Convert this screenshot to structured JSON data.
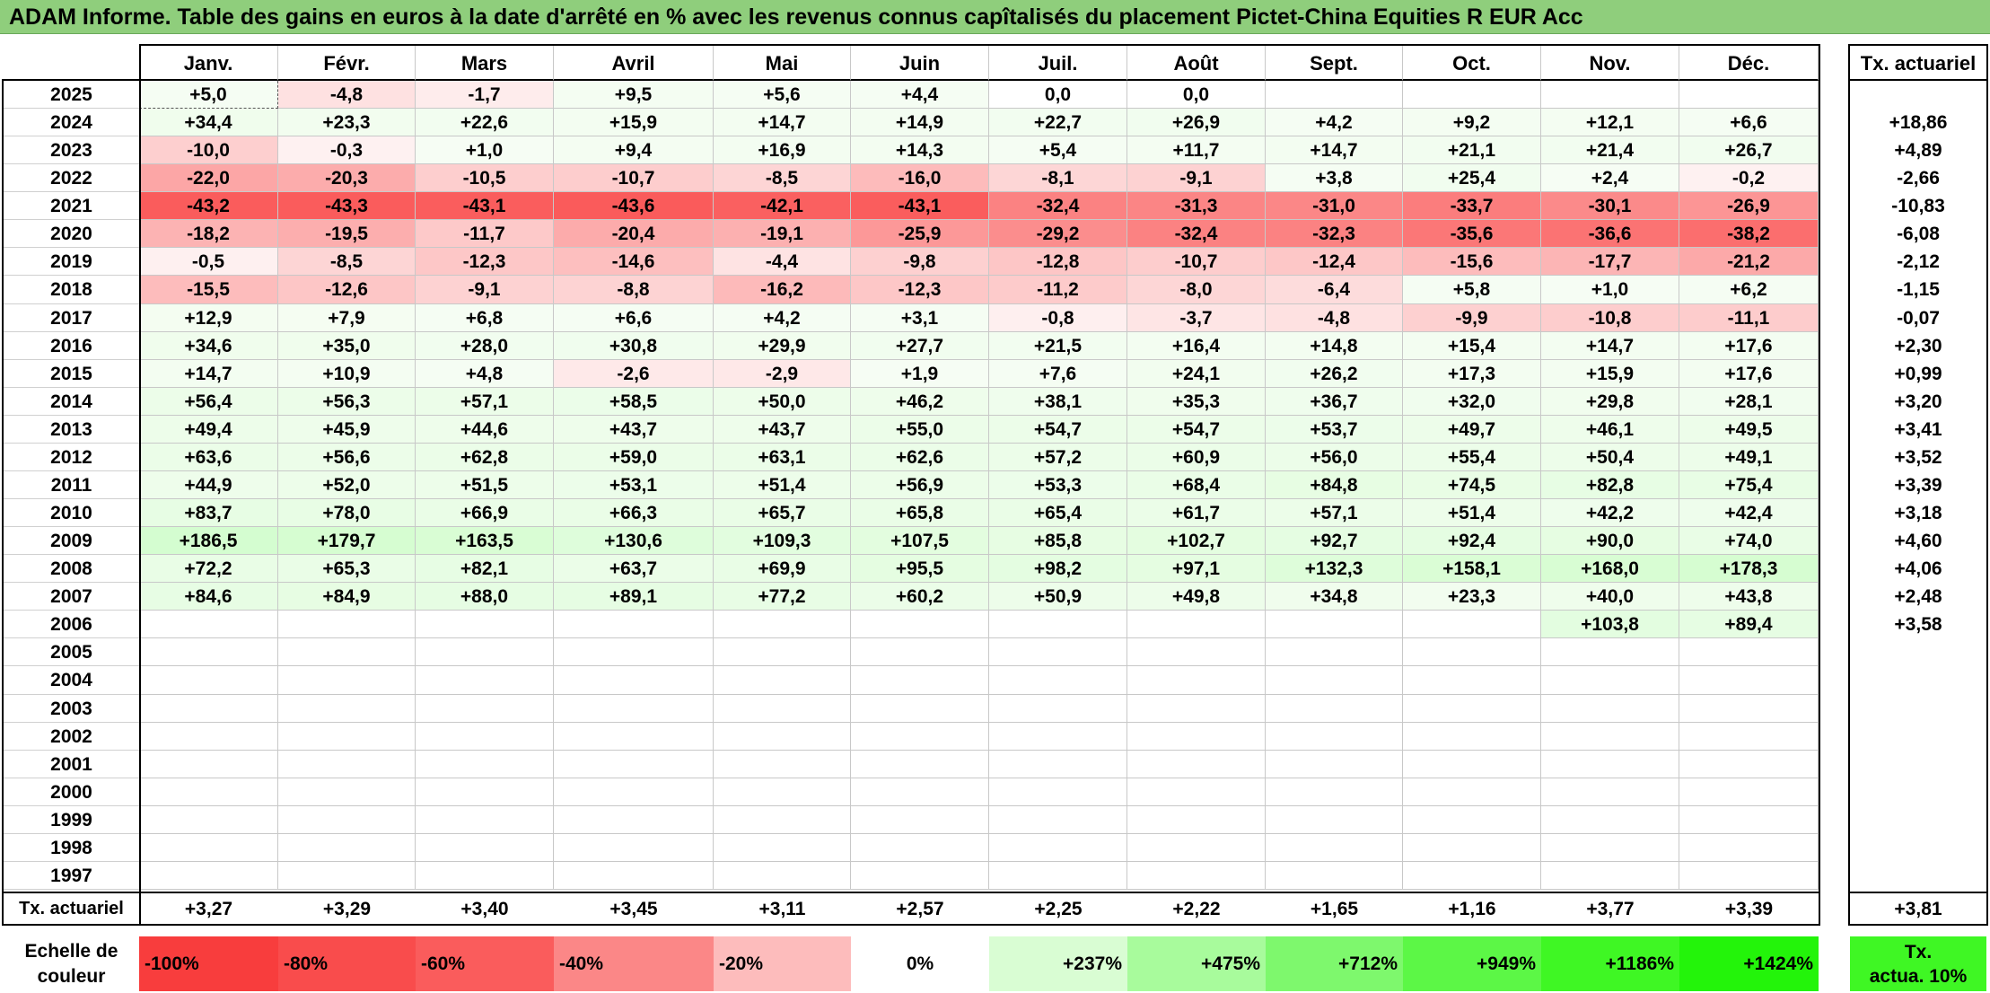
{
  "title": "ADAM Informe. Table des gains en euros à la date d'arrêté en % avec les revenus connus capîtalisés du placement Pictet-China Equities R EUR Acc",
  "months": [
    "Janv.",
    "Févr.",
    "Mars",
    "Avril",
    "Mai",
    "Juin",
    "Juil.",
    "Août",
    "Sept.",
    "Oct.",
    "Nov.",
    "Déc."
  ],
  "tx_header": "Tx. actuariel",
  "rows": [
    {
      "year": "2025",
      "values": [
        "+5,0",
        "-4,8",
        "-1,7",
        "+9,5",
        "+5,6",
        "+4,4",
        "0,0",
        "0,0",
        "",
        "",
        "",
        ""
      ],
      "tx": ""
    },
    {
      "year": "2024",
      "values": [
        "+34,4",
        "+23,3",
        "+22,6",
        "+15,9",
        "+14,7",
        "+14,9",
        "+22,7",
        "+26,9",
        "+4,2",
        "+9,2",
        "+12,1",
        "+6,6"
      ],
      "tx": "+18,86"
    },
    {
      "year": "2023",
      "values": [
        "-10,0",
        "-0,3",
        "+1,0",
        "+9,4",
        "+16,9",
        "+14,3",
        "+5,4",
        "+11,7",
        "+14,7",
        "+21,1",
        "+21,4",
        "+26,7"
      ],
      "tx": "+4,89"
    },
    {
      "year": "2022",
      "values": [
        "-22,0",
        "-20,3",
        "-10,5",
        "-10,7",
        "-8,5",
        "-16,0",
        "-8,1",
        "-9,1",
        "+3,8",
        "+25,4",
        "+2,4",
        "-0,2"
      ],
      "tx": "-2,66"
    },
    {
      "year": "2021",
      "values": [
        "-43,2",
        "-43,3",
        "-43,1",
        "-43,6",
        "-42,1",
        "-43,1",
        "-32,4",
        "-31,3",
        "-31,0",
        "-33,7",
        "-30,1",
        "-26,9"
      ],
      "tx": "-10,83"
    },
    {
      "year": "2020",
      "values": [
        "-18,2",
        "-19,5",
        "-11,7",
        "-20,4",
        "-19,1",
        "-25,9",
        "-29,2",
        "-32,4",
        "-32,3",
        "-35,6",
        "-36,6",
        "-38,2"
      ],
      "tx": "-6,08"
    },
    {
      "year": "2019",
      "values": [
        "-0,5",
        "-8,5",
        "-12,3",
        "-14,6",
        "-4,4",
        "-9,8",
        "-12,8",
        "-10,7",
        "-12,4",
        "-15,6",
        "-17,7",
        "-21,2"
      ],
      "tx": "-2,12"
    },
    {
      "year": "2018",
      "values": [
        "-15,5",
        "-12,6",
        "-9,1",
        "-8,8",
        "-16,2",
        "-12,3",
        "-11,2",
        "-8,0",
        "-6,4",
        "+5,8",
        "+1,0",
        "+6,2"
      ],
      "tx": "-1,15"
    },
    {
      "year": "2017",
      "values": [
        "+12,9",
        "+7,9",
        "+6,8",
        "+6,6",
        "+4,2",
        "+3,1",
        "-0,8",
        "-3,7",
        "-4,8",
        "-9,9",
        "-10,8",
        "-11,1"
      ],
      "tx": "-0,07"
    },
    {
      "year": "2016",
      "values": [
        "+34,6",
        "+35,0",
        "+28,0",
        "+30,8",
        "+29,9",
        "+27,7",
        "+21,5",
        "+16,4",
        "+14,8",
        "+15,4",
        "+14,7",
        "+17,6"
      ],
      "tx": "+2,30"
    },
    {
      "year": "2015",
      "values": [
        "+14,7",
        "+10,9",
        "+4,8",
        "-2,6",
        "-2,9",
        "+1,9",
        "+7,6",
        "+24,1",
        "+26,2",
        "+17,3",
        "+15,9",
        "+17,6"
      ],
      "tx": "+0,99"
    },
    {
      "year": "2014",
      "values": [
        "+56,4",
        "+56,3",
        "+57,1",
        "+58,5",
        "+50,0",
        "+46,2",
        "+38,1",
        "+35,3",
        "+36,7",
        "+32,0",
        "+29,8",
        "+28,1"
      ],
      "tx": "+3,20"
    },
    {
      "year": "2013",
      "values": [
        "+49,4",
        "+45,9",
        "+44,6",
        "+43,7",
        "+43,7",
        "+55,0",
        "+54,7",
        "+54,7",
        "+53,7",
        "+49,7",
        "+46,1",
        "+49,5"
      ],
      "tx": "+3,41"
    },
    {
      "year": "2012",
      "values": [
        "+63,6",
        "+56,6",
        "+62,8",
        "+59,0",
        "+63,1",
        "+62,6",
        "+57,2",
        "+60,9",
        "+56,0",
        "+55,4",
        "+50,4",
        "+49,1"
      ],
      "tx": "+3,52"
    },
    {
      "year": "2011",
      "values": [
        "+44,9",
        "+52,0",
        "+51,5",
        "+53,1",
        "+51,4",
        "+56,9",
        "+53,3",
        "+68,4",
        "+84,8",
        "+74,5",
        "+82,8",
        "+75,4"
      ],
      "tx": "+3,39"
    },
    {
      "year": "2010",
      "values": [
        "+83,7",
        "+78,0",
        "+66,9",
        "+66,3",
        "+65,7",
        "+65,8",
        "+65,4",
        "+61,7",
        "+57,1",
        "+51,4",
        "+42,2",
        "+42,4"
      ],
      "tx": "+3,18"
    },
    {
      "year": "2009",
      "values": [
        "+186,5",
        "+179,7",
        "+163,5",
        "+130,6",
        "+109,3",
        "+107,5",
        "+85,8",
        "+102,7",
        "+92,7",
        "+92,4",
        "+90,0",
        "+74,0"
      ],
      "tx": "+4,60"
    },
    {
      "year": "2008",
      "values": [
        "+72,2",
        "+65,3",
        "+82,1",
        "+63,7",
        "+69,9",
        "+95,5",
        "+98,2",
        "+97,1",
        "+132,3",
        "+158,1",
        "+168,0",
        "+178,3"
      ],
      "tx": "+4,06"
    },
    {
      "year": "2007",
      "values": [
        "+84,6",
        "+84,9",
        "+88,0",
        "+89,1",
        "+77,2",
        "+60,2",
        "+50,9",
        "+49,8",
        "+34,8",
        "+23,3",
        "+40,0",
        "+43,8"
      ],
      "tx": "+2,48"
    },
    {
      "year": "2006",
      "values": [
        "",
        "",
        "",
        "",
        "",
        "",
        "",
        "",
        "",
        "",
        "+103,8",
        "+89,4"
      ],
      "tx": "+3,58"
    },
    {
      "year": "2005",
      "values": [
        "",
        "",
        "",
        "",
        "",
        "",
        "",
        "",
        "",
        "",
        "",
        ""
      ],
      "tx": ""
    },
    {
      "year": "2004",
      "values": [
        "",
        "",
        "",
        "",
        "",
        "",
        "",
        "",
        "",
        "",
        "",
        ""
      ],
      "tx": ""
    },
    {
      "year": "2003",
      "values": [
        "",
        "",
        "",
        "",
        "",
        "",
        "",
        "",
        "",
        "",
        "",
        ""
      ],
      "tx": ""
    },
    {
      "year": "2002",
      "values": [
        "",
        "",
        "",
        "",
        "",
        "",
        "",
        "",
        "",
        "",
        "",
        ""
      ],
      "tx": ""
    },
    {
      "year": "2001",
      "values": [
        "",
        "",
        "",
        "",
        "",
        "",
        "",
        "",
        "",
        "",
        "",
        ""
      ],
      "tx": ""
    },
    {
      "year": "2000",
      "values": [
        "",
        "",
        "",
        "",
        "",
        "",
        "",
        "",
        "",
        "",
        "",
        ""
      ],
      "tx": ""
    },
    {
      "year": "1999",
      "values": [
        "",
        "",
        "",
        "",
        "",
        "",
        "",
        "",
        "",
        "",
        "",
        ""
      ],
      "tx": ""
    },
    {
      "year": "1998",
      "values": [
        "",
        "",
        "",
        "",
        "",
        "",
        "",
        "",
        "",
        "",
        "",
        ""
      ],
      "tx": ""
    },
    {
      "year": "1997",
      "values": [
        "",
        "",
        "",
        "",
        "",
        "",
        "",
        "",
        "",
        "",
        "",
        ""
      ],
      "tx": ""
    }
  ],
  "footer": {
    "label": "Tx. actuariel",
    "values": [
      "+3,27",
      "+3,29",
      "+3,40",
      "+3,45",
      "+3,11",
      "+2,57",
      "+2,25",
      "+2,22",
      "+1,65",
      "+1,16",
      "+3,77",
      "+3,39"
    ],
    "total": "+3,81"
  },
  "scale": {
    "label_line1": "Echelle de",
    "label_line2": "couleur",
    "items": [
      {
        "text": "-100%",
        "color": "#f83d3d"
      },
      {
        "text": "-80%",
        "color": "#f94c4c"
      },
      {
        "text": "-60%",
        "color": "#fa5c5c"
      },
      {
        "text": "-40%",
        "color": "#fb8787"
      },
      {
        "text": "-20%",
        "color": "#fdbcbc"
      },
      {
        "text": "0%",
        "color": "#ffffff"
      },
      {
        "text": "+237%",
        "color": "#d9fdd3"
      },
      {
        "text": "+475%",
        "color": "#a8fb9c"
      },
      {
        "text": "+712%",
        "color": "#7ef86d"
      },
      {
        "text": "+949%",
        "color": "#5cf746"
      },
      {
        "text": "+1186%",
        "color": "#3ff724"
      },
      {
        "text": "+1424%",
        "color": "#23f40a"
      }
    ],
    "tx_line1": "Tx.",
    "tx_line2": "actua. 10%",
    "tx_color": "#3ff724"
  }
}
